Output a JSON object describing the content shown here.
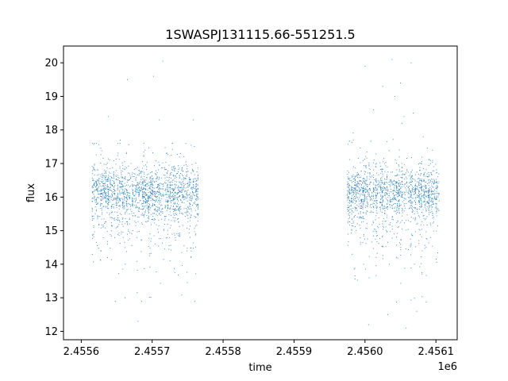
{
  "chart_data": {
    "type": "scatter",
    "title": "1SWASPJ131115.66-551251.5",
    "xlabel": "time",
    "ylabel": "flux",
    "x_offset_label": "1e6",
    "xlim": [
      2455575,
      2456130
    ],
    "ylim": [
      11.75,
      20.5
    ],
    "x_ticks": [
      2455600,
      2455700,
      2455800,
      2455900,
      2456000,
      2456100
    ],
    "x_tick_labels": [
      "2.4556",
      "2.4557",
      "2.4558",
      "2.4559",
      "2.4560",
      "2.4561"
    ],
    "y_ticks": [
      12,
      13,
      14,
      15,
      16,
      17,
      18,
      19,
      20
    ],
    "y_tick_labels": [
      "12",
      "13",
      "14",
      "15",
      "16",
      "17",
      "18",
      "19",
      "20"
    ],
    "grid": false,
    "marker_color": "#1f77b4",
    "series": [
      {
        "segments": [
          {
            "x_start": 2455615,
            "x_end": 2455765,
            "y_center": 16.2,
            "y_low": 13.0,
            "y_high": 17.6
          },
          {
            "x_start": 2455975,
            "x_end": 2456105,
            "y_center": 16.2,
            "y_low": 12.4,
            "y_high": 18.2
          }
        ],
        "outliers": [
          {
            "x": 2455638,
            "y": 18.4
          },
          {
            "x": 2455648,
            "y": 12.9
          },
          {
            "x": 2455655,
            "y": 17.7
          },
          {
            "x": 2455665,
            "y": 19.5
          },
          {
            "x": 2455680,
            "y": 12.3
          },
          {
            "x": 2455685,
            "y": 12.9
          },
          {
            "x": 2455690,
            "y": 17.4
          },
          {
            "x": 2455702,
            "y": 19.6
          },
          {
            "x": 2455710,
            "y": 18.3
          },
          {
            "x": 2455715,
            "y": 20.05
          },
          {
            "x": 2455720,
            "y": 17.3
          },
          {
            "x": 2455740,
            "y": 17.3
          },
          {
            "x": 2455758,
            "y": 18.3
          },
          {
            "x": 2455760,
            "y": 12.9
          },
          {
            "x": 2456000,
            "y": 19.9
          },
          {
            "x": 2456005,
            "y": 12.2
          },
          {
            "x": 2456012,
            "y": 18.6
          },
          {
            "x": 2456025,
            "y": 19.3
          },
          {
            "x": 2456032,
            "y": 12.5
          },
          {
            "x": 2456038,
            "y": 20.1
          },
          {
            "x": 2456042,
            "y": 19.0
          },
          {
            "x": 2456050,
            "y": 19.4
          },
          {
            "x": 2456055,
            "y": 18.4
          },
          {
            "x": 2456058,
            "y": 12.1
          },
          {
            "x": 2456065,
            "y": 20.0
          },
          {
            "x": 2456068,
            "y": 18.5
          },
          {
            "x": 2456073,
            "y": 12.6
          },
          {
            "x": 2456082,
            "y": 17.8
          },
          {
            "x": 2456095,
            "y": 17.4
          }
        ]
      }
    ]
  }
}
